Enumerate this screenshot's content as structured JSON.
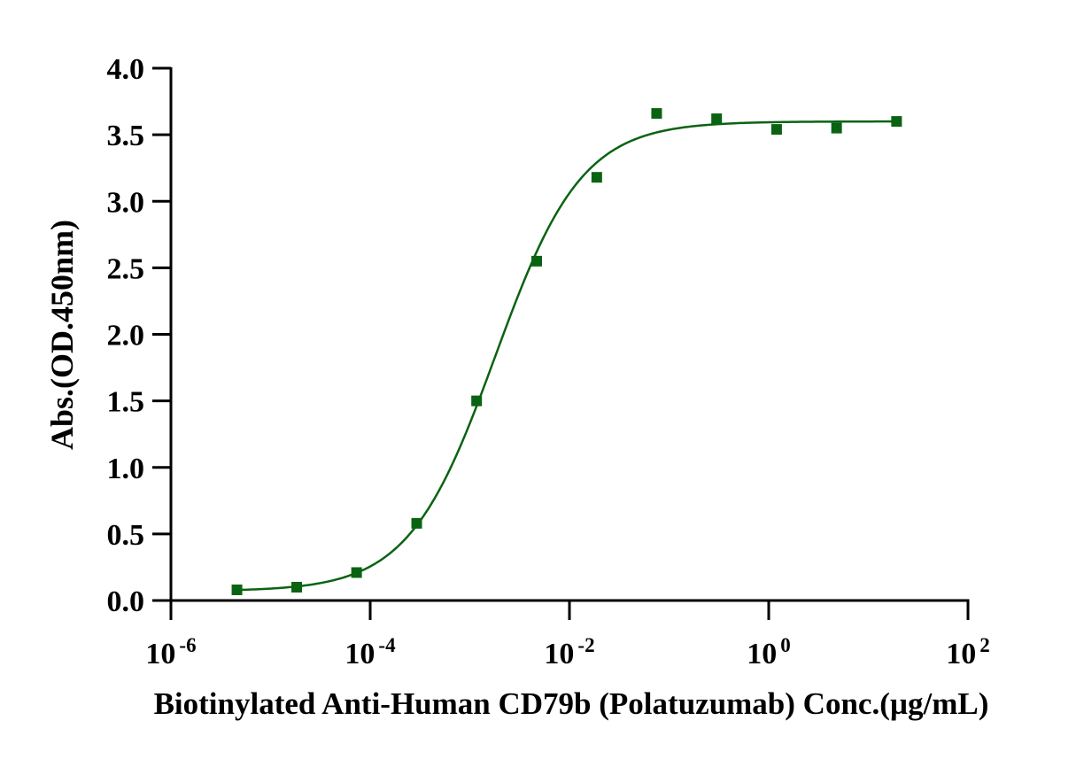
{
  "chart_data": {
    "type": "scatter",
    "title": "",
    "xlabel": "Biotinylated Anti-Human CD79b (Polatuzumab) Conc.(µg/mL)",
    "ylabel": "Abs.(OD.450nm)",
    "x_scale": "log10",
    "xlim": [
      1e-06,
      100
    ],
    "ylim": [
      0,
      4.0
    ],
    "x_ticks": [
      {
        "base": "10",
        "exp": "-6"
      },
      {
        "base": "10",
        "exp": "-4"
      },
      {
        "base": "10",
        "exp": "-2"
      },
      {
        "base": "10",
        "exp": "0"
      },
      {
        "base": "10",
        "exp": "2"
      }
    ],
    "y_ticks": [
      "0.0",
      "0.5",
      "1.0",
      "1.5",
      "2.0",
      "2.5",
      "3.0",
      "3.5",
      "4.0"
    ],
    "grid": false,
    "legend": "none",
    "color": "#0a6312",
    "marker": "square",
    "series": [
      {
        "x": [
          4.6e-06,
          1.83e-05,
          7.3e-05,
          0.000293,
          0.00117,
          0.00469,
          0.0188,
          0.075,
          0.3,
          1.2,
          4.8,
          19.2
        ],
        "values": [
          0.08,
          0.1,
          0.21,
          0.58,
          1.5,
          2.55,
          3.18,
          3.66,
          3.62,
          3.54,
          3.55,
          3.6
        ]
      }
    ],
    "fit": {
      "model": "4PL",
      "bottom": 0.07,
      "top": 3.6,
      "ec50": 0.0018,
      "hill": 1.0
    }
  }
}
